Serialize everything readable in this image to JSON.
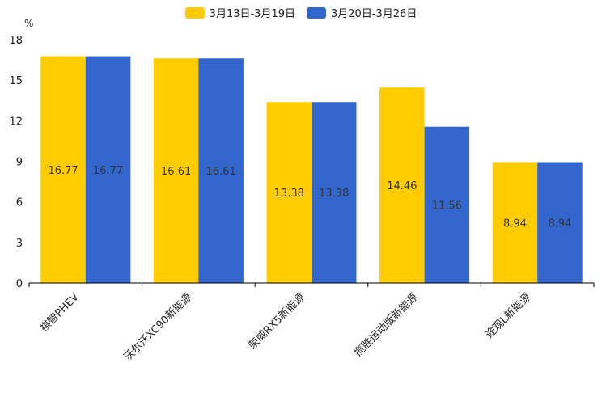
{
  "chart_data": {
    "type": "bar",
    "unit": "%",
    "categories": [
      "祺智PHEV",
      "沃尔沃XC90新能源",
      "荣威RX5新能源",
      "揽胜运动版新能源",
      "途观L新能源"
    ],
    "series": [
      {
        "name": "3月13日-3月19日",
        "color": "#FFCC00",
        "values": [
          16.77,
          16.61,
          13.38,
          14.46,
          8.94
        ]
      },
      {
        "name": "3月20日-3月26日",
        "color": "#3366CC",
        "values": [
          16.77,
          16.61,
          13.38,
          11.56,
          8.94
        ]
      }
    ],
    "ylim": [
      0,
      18
    ],
    "yticks": [
      0,
      3,
      6,
      9,
      12,
      15,
      18
    ],
    "legend_position": "top-center"
  }
}
